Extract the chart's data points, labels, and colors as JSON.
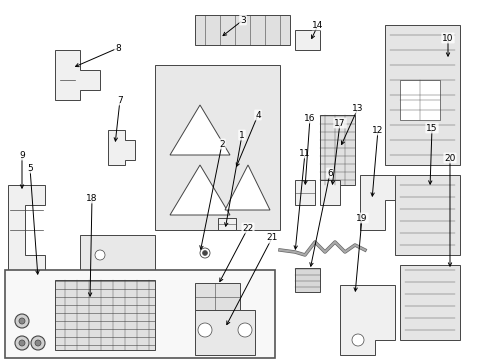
{
  "bg_color": "#ffffff",
  "ec": "#444444",
  "fc_light": "#f0f0f0",
  "lw": 0.7,
  "label_positions": {
    "1": [
      242,
      135,
      225,
      230
    ],
    "2": [
      222,
      144,
      200,
      253
    ],
    "3": [
      243,
      20,
      220,
      38
    ],
    "4": [
      258,
      115,
      235,
      170
    ],
    "5": [
      30,
      168,
      38,
      278
    ],
    "6": [
      330,
      173,
      310,
      270
    ],
    "7": [
      120,
      100,
      115,
      145
    ],
    "8": [
      118,
      48,
      72,
      68
    ],
    "9": [
      22,
      155,
      22,
      192
    ],
    "10": [
      448,
      38,
      448,
      60
    ],
    "11": [
      305,
      153,
      295,
      253
    ],
    "12": [
      378,
      130,
      372,
      200
    ],
    "13": [
      358,
      108,
      340,
      148
    ],
    "14": [
      318,
      25,
      310,
      42
    ],
    "15": [
      432,
      128,
      430,
      188
    ],
    "16": [
      310,
      118,
      305,
      188
    ],
    "17": [
      340,
      123,
      332,
      188
    ],
    "18": [
      92,
      198,
      90,
      300
    ],
    "19": [
      362,
      218,
      355,
      295
    ],
    "20": [
      450,
      158,
      450,
      270
    ],
    "21": [
      272,
      238,
      225,
      328
    ],
    "22": [
      248,
      228,
      218,
      285
    ]
  }
}
